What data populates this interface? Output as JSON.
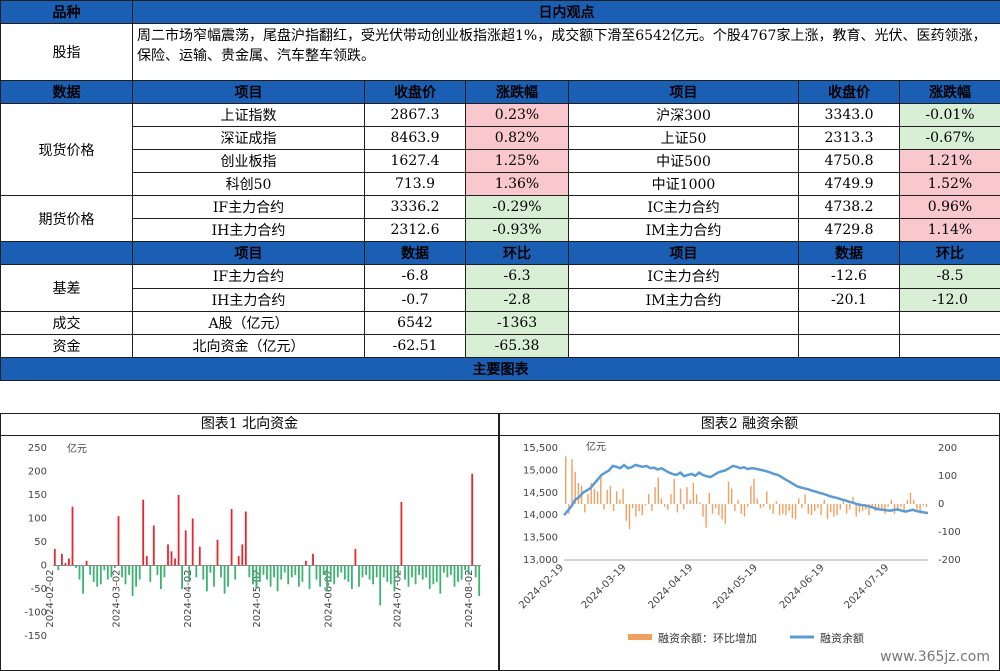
{
  "header": {
    "col1": "品种",
    "col2": "日内观点"
  },
  "commentary": {
    "label": "股指",
    "text": "周二市场窄幅震荡，尾盘沪指翻红，受光伏带动创业板指涨超1%，成交额下滑至6542亿元。个股4767家上涨，教育、光伏、医药领涨，保险、运输、贵金属、汽车整车领跌。"
  },
  "price_header": [
    "数据",
    "项目",
    "收盘价",
    "涨跌幅",
    "项目",
    "收盘价",
    "涨跌幅"
  ],
  "spot": {
    "label": "现货价格",
    "rows": [
      {
        "n1": "上证指数",
        "p1": "2867.3",
        "c1": "0.23%",
        "n2": "沪深300",
        "p2": "3343.0",
        "c2": "-0.01%"
      },
      {
        "n1": "深证成指",
        "p1": "8463.9",
        "c1": "0.82%",
        "n2": "上证50",
        "p2": "2313.3",
        "c2": "-0.67%"
      },
      {
        "n1": "创业板指",
        "p1": "1627.4",
        "c1": "1.25%",
        "n2": "中证500",
        "p2": "4750.8",
        "c2": "1.21%"
      },
      {
        "n1": "科创50",
        "p1": "713.9",
        "c1": "1.36%",
        "n2": "中证1000",
        "p2": "4749.9",
        "c2": "1.52%"
      }
    ]
  },
  "futures": {
    "label": "期货价格",
    "rows": [
      {
        "n1": "IF主力合约",
        "p1": "3336.2",
        "c1": "-0.29%",
        "n2": "IC主力合约",
        "p2": "4738.2",
        "c2": "0.96%"
      },
      {
        "n1": "IH主力合约",
        "p1": "2312.6",
        "c1": "-0.93%",
        "n2": "IM主力合约",
        "p2": "4729.8",
        "c2": "1.14%"
      }
    ]
  },
  "basis_header": [
    "项目",
    "数据",
    "环比",
    "项目",
    "数据",
    "环比"
  ],
  "basis": {
    "label": "基差",
    "rows": [
      {
        "n1": "IF主力合约",
        "p1": "-6.8",
        "c1": "-6.3",
        "n2": "IC主力合约",
        "p2": "-12.6",
        "c2": "-8.5"
      },
      {
        "n1": "IH主力合约",
        "p1": "-0.7",
        "c1": "-2.8",
        "n2": "IM主力合约",
        "p2": "-20.1",
        "c2": "-12.0"
      }
    ]
  },
  "turnover": {
    "label": "成交",
    "item": "A股（亿元）",
    "value": "6542",
    "change": "-1363"
  },
  "capital": {
    "label": "资金",
    "item": "北向资金（亿元）",
    "value": "-62.51",
    "change": "-65.38"
  },
  "charts_title": "主要图表",
  "chart_data": [
    {
      "type": "bar",
      "title": "图表1  北向资金",
      "ylabel": "亿元",
      "ylim": [
        -150,
        250
      ],
      "yticks": [
        -150,
        -100,
        -50,
        0,
        50,
        100,
        150,
        200,
        250
      ],
      "xticks": [
        "2024-02-02",
        "2024-03-02",
        "2024-04-02",
        "2024-05-02",
        "2024-06-02",
        "2024-07-02",
        "2024-08-02"
      ],
      "x": [
        "2024-02-02",
        "2024-02-05",
        "2024-02-06",
        "2024-02-07",
        "2024-02-08",
        "2024-02-19",
        "2024-02-20",
        "2024-02-21",
        "2024-02-22",
        "2024-02-23",
        "2024-02-26",
        "2024-02-27",
        "2024-02-28",
        "2024-02-29",
        "2024-03-01",
        "2024-03-04",
        "2024-03-05",
        "2024-03-06",
        "2024-03-07",
        "2024-03-08",
        "2024-03-11",
        "2024-03-12",
        "2024-03-13",
        "2024-03-14",
        "2024-03-15",
        "2024-03-18",
        "2024-03-19",
        "2024-03-20",
        "2024-03-21",
        "2024-03-22",
        "2024-03-25",
        "2024-03-26",
        "2024-03-27",
        "2024-03-28",
        "2024-03-29",
        "2024-04-01",
        "2024-04-02",
        "2024-04-03",
        "2024-04-08",
        "2024-04-09",
        "2024-04-10",
        "2024-04-11",
        "2024-04-12",
        "2024-04-15",
        "2024-04-16",
        "2024-04-17",
        "2024-04-18",
        "2024-04-19",
        "2024-04-22",
        "2024-04-23",
        "2024-04-24",
        "2024-04-25",
        "2024-04-26",
        "2024-04-29",
        "2024-04-30",
        "2024-05-06",
        "2024-05-07",
        "2024-05-08",
        "2024-05-09",
        "2024-05-10",
        "2024-05-13",
        "2024-05-14",
        "2024-05-15",
        "2024-05-16",
        "2024-05-17",
        "2024-05-20",
        "2024-05-21",
        "2024-05-22",
        "2024-05-23",
        "2024-05-24",
        "2024-05-27",
        "2024-05-28",
        "2024-05-29",
        "2024-05-30",
        "2024-05-31",
        "2024-06-03",
        "2024-06-04",
        "2024-06-05",
        "2024-06-06",
        "2024-06-07",
        "2024-06-11",
        "2024-06-12",
        "2024-06-13",
        "2024-06-14",
        "2024-06-17",
        "2024-06-18",
        "2024-06-19",
        "2024-06-20",
        "2024-06-21",
        "2024-06-24",
        "2024-06-25",
        "2024-06-26",
        "2024-06-27",
        "2024-06-28",
        "2024-07-01",
        "2024-07-02",
        "2024-07-03",
        "2024-07-04",
        "2024-07-05",
        "2024-07-08",
        "2024-07-09",
        "2024-07-10",
        "2024-07-11",
        "2024-07-12",
        "2024-07-15",
        "2024-07-16",
        "2024-07-17",
        "2024-07-18",
        "2024-07-19",
        "2024-07-22",
        "2024-07-23",
        "2024-07-24",
        "2024-07-25",
        "2024-07-26",
        "2024-07-29",
        "2024-07-30",
        "2024-07-31",
        "2024-08-01",
        "2024-08-02",
        "2024-08-05",
        "2024-08-06"
      ],
      "values": [
        35,
        -10,
        25,
        5,
        15,
        125,
        -5,
        -30,
        -60,
        10,
        -20,
        -35,
        -45,
        -40,
        -10,
        -30,
        -25,
        -5,
        105,
        -25,
        -40,
        -20,
        -65,
        -45,
        -30,
        140,
        20,
        -35,
        85,
        -20,
        -50,
        -25,
        45,
        30,
        15,
        150,
        -50,
        75,
        -35,
        100,
        -25,
        40,
        -30,
        -55,
        -15,
        -45,
        55,
        -25,
        -60,
        -45,
        120,
        -30,
        20,
        45,
        115,
        -25,
        -40,
        -50,
        -35,
        -20,
        -30,
        -45,
        -25,
        -55,
        -30,
        -15,
        -40,
        -25,
        -20,
        -45,
        -35,
        10,
        -50,
        25,
        -30,
        -45,
        -20,
        -55,
        -35,
        -40,
        -25,
        -15,
        -30,
        -35,
        -50,
        35,
        -45,
        -25,
        -20,
        -30,
        -40,
        -25,
        -85,
        -25,
        -35,
        -40,
        -55,
        -25,
        135,
        -30,
        -45,
        -25,
        -40,
        -20,
        -30,
        -25,
        -50,
        -40,
        -35,
        -60,
        -15,
        -25,
        -20,
        -45,
        -35,
        -30,
        -10,
        -20,
        195,
        -25,
        -65
      ]
    },
    {
      "type": "line+bar",
      "title": "图表2  融资余额",
      "ylabel": "亿元",
      "ylim_left": [
        13000,
        15500
      ],
      "yticks_left": [
        13000,
        13500,
        14000,
        14500,
        15000,
        15500
      ],
      "ylim_right": [
        -200,
        200
      ],
      "yticks_right": [
        -200,
        -100,
        0,
        100,
        200
      ],
      "xticks": [
        "2024-02-19",
        "2024-03-19",
        "2024-04-19",
        "2024-05-19",
        "2024-06-19",
        "2024-07-19"
      ],
      "x_start": "2024-02-19",
      "x_end": "2024-08-06",
      "series": [
        {
          "name": "融资余额：环比增加",
          "axis": "right",
          "kind": "bar",
          "color": "#f0a060",
          "values": [
            170,
            -35,
            160,
            115,
            75,
            65,
            -30,
            35,
            75,
            55,
            45,
            95,
            -20,
            50,
            65,
            -25,
            45,
            15,
            55,
            -60,
            -90,
            -15,
            -45,
            -25,
            -40,
            -5,
            35,
            -25,
            60,
            95,
            20,
            -10,
            -20,
            35,
            90,
            -30,
            55,
            -20,
            60,
            15,
            75,
            35,
            5,
            -45,
            -85,
            40,
            -35,
            -15,
            -40,
            -55,
            -70,
            80,
            55,
            -25,
            15,
            -35,
            -45,
            -10,
            65,
            90,
            20,
            -15,
            -10,
            45,
            -20,
            -35,
            10,
            -40,
            -35,
            -40,
            -25,
            -50,
            -55,
            20,
            -15,
            35,
            -35,
            -40,
            -25,
            -15,
            -40,
            15,
            -55,
            -30,
            -45,
            -40,
            -20,
            15,
            -35,
            -20,
            25,
            -45,
            -30,
            -25,
            -20,
            -40,
            -15,
            -25,
            -15,
            -20,
            -35,
            -10,
            15,
            -35,
            -25,
            -10,
            -25,
            15,
            40,
            15,
            -20,
            -35,
            -5,
            -10
          ]
        },
        {
          "name": "融资余额",
          "axis": "left",
          "kind": "line",
          "color": "#5b9bd5",
          "values": [
            14000,
            14100,
            14200,
            14350,
            14400,
            14500,
            14550,
            14600,
            14700,
            14800,
            14900,
            14950,
            15000,
            15100,
            15080,
            15050,
            15120,
            15050,
            15070,
            15120,
            15100,
            15080,
            15100,
            15050,
            15060,
            15020,
            15050,
            15000,
            14950,
            14920,
            14900,
            14950,
            14870,
            14900,
            14920,
            14880,
            14950,
            14900,
            14870,
            14850,
            14900,
            14950,
            14980,
            15000,
            15050,
            15100,
            15080,
            15050,
            15070,
            15030,
            15050,
            15040,
            15020,
            15000,
            14980,
            14950,
            14920,
            14900,
            14850,
            14800,
            14750,
            14700,
            14650,
            14620,
            14600,
            14580,
            14550,
            14530,
            14500,
            14480,
            14450,
            14420,
            14400,
            14380,
            14350,
            14330,
            14300,
            14280,
            14250,
            14230,
            14220,
            14200,
            14180,
            14150,
            14130,
            14120,
            14110,
            14100,
            14120,
            14130,
            14100,
            14080,
            14100,
            14120,
            14090,
            14080,
            14060,
            14050
          ]
        }
      ]
    }
  ],
  "watermark": "www.365jz.com"
}
